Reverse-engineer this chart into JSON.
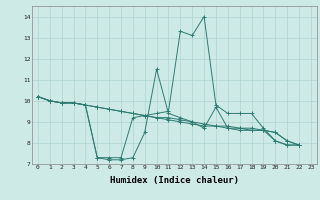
{
  "xlabel": "Humidex (Indice chaleur)",
  "xlim": [
    -0.5,
    23.5
  ],
  "ylim": [
    7,
    14.5
  ],
  "yticks": [
    7,
    8,
    9,
    10,
    11,
    12,
    13,
    14
  ],
  "xticks": [
    0,
    1,
    2,
    3,
    4,
    5,
    6,
    7,
    8,
    9,
    10,
    11,
    12,
    13,
    14,
    15,
    16,
    17,
    18,
    19,
    20,
    21,
    22,
    23
  ],
  "background_color": "#ceeae6",
  "grid_color": "#add4d0",
  "line_color": "#2e7b72",
  "series": [
    [
      10.2,
      10.0,
      9.9,
      9.9,
      9.8,
      7.3,
      7.2,
      7.2,
      7.3,
      8.5,
      11.5,
      9.4,
      9.2,
      9.0,
      8.7,
      9.7,
      8.7,
      8.6,
      8.6,
      8.6,
      8.1,
      7.9,
      7.9
    ],
    [
      10.2,
      10.0,
      9.9,
      9.9,
      9.8,
      7.3,
      7.3,
      7.3,
      9.2,
      9.3,
      9.4,
      9.5,
      13.3,
      13.1,
      14.0,
      9.8,
      9.4,
      9.4,
      9.4,
      8.7,
      8.1,
      7.9,
      7.9
    ],
    [
      10.2,
      10.0,
      9.9,
      9.9,
      9.8,
      9.7,
      9.6,
      9.5,
      9.4,
      9.3,
      9.2,
      9.2,
      9.1,
      9.0,
      8.9,
      8.8,
      8.8,
      8.7,
      8.6,
      8.6,
      8.5,
      8.1,
      7.9
    ],
    [
      10.2,
      10.0,
      9.9,
      9.9,
      9.8,
      9.7,
      9.6,
      9.5,
      9.4,
      9.3,
      9.2,
      9.1,
      9.0,
      8.9,
      8.8,
      8.8,
      8.7,
      8.7,
      8.7,
      8.6,
      8.5,
      8.1,
      7.9
    ]
  ],
  "series_x": [
    [
      0,
      1,
      2,
      3,
      4,
      5,
      6,
      7,
      8,
      9,
      10,
      11,
      12,
      13,
      14,
      15,
      16,
      17,
      18,
      19,
      20,
      21,
      22
    ],
    [
      0,
      1,
      2,
      3,
      4,
      5,
      6,
      7,
      8,
      9,
      10,
      11,
      12,
      13,
      14,
      15,
      16,
      17,
      18,
      19,
      20,
      21,
      22
    ],
    [
      0,
      1,
      2,
      3,
      4,
      5,
      6,
      7,
      8,
      9,
      10,
      11,
      12,
      13,
      14,
      15,
      16,
      17,
      18,
      19,
      20,
      21,
      22
    ],
    [
      0,
      1,
      2,
      3,
      4,
      5,
      6,
      7,
      8,
      9,
      10,
      11,
      12,
      13,
      14,
      15,
      16,
      17,
      18,
      19,
      20,
      21,
      22
    ]
  ],
  "xtick_fontsize": 4.5,
  "ytick_fontsize": 5.5,
  "xlabel_fontsize": 6.5
}
